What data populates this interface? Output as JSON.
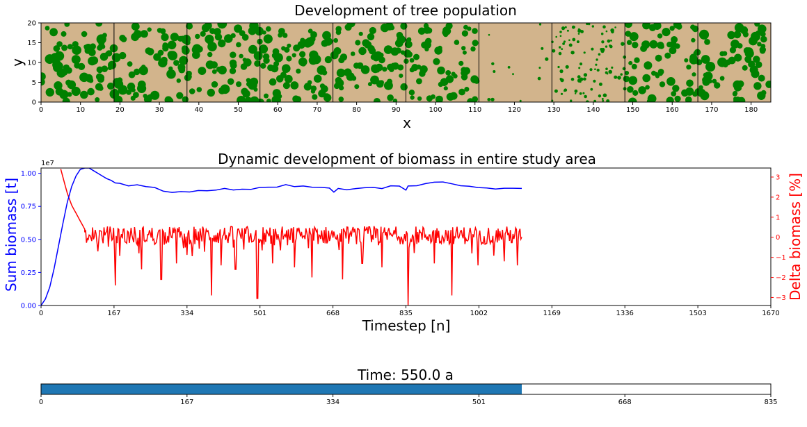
{
  "chart_data": [
    {
      "id": "tree_map",
      "type": "scatter",
      "title": "Development of tree population",
      "xlabel": "x",
      "ylabel": "y",
      "xlim": [
        0,
        185
      ],
      "ylim": [
        0,
        20
      ],
      "xticks": [
        0,
        10,
        20,
        30,
        40,
        50,
        60,
        70,
        80,
        90,
        100,
        110,
        120,
        130,
        140,
        150,
        160,
        170,
        180
      ],
      "yticks": [
        0,
        5,
        10,
        15,
        20
      ],
      "background_color": "#d2b48c",
      "tree_color": "#008000",
      "panel_boundaries_x": [
        18.5,
        37,
        55.5,
        74,
        92.5,
        111,
        129.5,
        148,
        166.5
      ],
      "panels": [
        {
          "x_range": [
            0,
            18.5
          ],
          "tree_cover": 0.82
        },
        {
          "x_range": [
            18.5,
            37
          ],
          "tree_cover": 0.8
        },
        {
          "x_range": [
            37,
            55.5
          ],
          "tree_cover": 0.8
        },
        {
          "x_range": [
            55.5,
            74
          ],
          "tree_cover": 0.78
        },
        {
          "x_range": [
            74,
            92.5
          ],
          "tree_cover": 0.72
        },
        {
          "x_range": [
            92.5,
            111
          ],
          "tree_cover": 0.58
        },
        {
          "x_range": [
            111,
            129.5
          ],
          "tree_cover": 0.02
        },
        {
          "x_range": [
            129.5,
            148
          ],
          "tree_cover": 0.35
        },
        {
          "x_range": [
            148,
            166.5
          ],
          "tree_cover": 0.72
        },
        {
          "x_range": [
            166.5,
            185
          ],
          "tree_cover": 0.82
        }
      ]
    },
    {
      "id": "biomass",
      "type": "line",
      "title": "Dynamic development of biomass in entire study area",
      "xlabel": "Timestep [n]",
      "ylabel_left": "Sum biomass [t]",
      "ylabel_right": "Delta biomass [%]",
      "left_axis_offset": "1e7",
      "xlim": [
        0,
        1670
      ],
      "xticks": [
        "0",
        "167",
        "334",
        "501",
        "668",
        "835",
        "1002",
        "1169",
        "1336",
        "1503",
        "1670"
      ],
      "ylim_left": [
        0,
        1.04
      ],
      "yticks_left": [
        "0.00",
        "0.25",
        "0.50",
        "0.75",
        "1.00"
      ],
      "ylim_right": [
        -3.4,
        3.45
      ],
      "yticks_right": [
        "−3",
        "−2",
        "−1",
        "0",
        "1",
        "2",
        "3"
      ],
      "series": [
        {
          "axis": "left",
          "color": "#0000ff",
          "x": [
            0,
            10,
            20,
            30,
            40,
            50,
            60,
            70,
            80,
            90,
            100,
            110,
            120,
            130,
            140,
            150,
            160,
            170,
            180,
            200,
            220,
            240,
            260,
            280,
            300,
            320,
            340,
            360,
            380,
            400,
            420,
            440,
            460,
            480,
            500,
            520,
            540,
            560,
            580,
            600,
            620,
            640,
            660,
            670,
            680,
            700,
            720,
            740,
            760,
            780,
            800,
            820,
            835,
            840,
            860,
            880,
            900,
            920,
            940,
            960,
            980,
            1000,
            1020,
            1040,
            1060,
            1080,
            1100
          ],
          "values": [
            0.0,
            0.05,
            0.14,
            0.28,
            0.45,
            0.62,
            0.78,
            0.9,
            0.98,
            1.03,
            1.04,
            1.04,
            1.02,
            1.0,
            0.98,
            0.96,
            0.95,
            0.93,
            0.92,
            0.91,
            0.91,
            0.9,
            0.89,
            0.87,
            0.86,
            0.86,
            0.86,
            0.87,
            0.87,
            0.87,
            0.88,
            0.87,
            0.88,
            0.88,
            0.89,
            0.9,
            0.9,
            0.91,
            0.9,
            0.9,
            0.9,
            0.89,
            0.89,
            0.86,
            0.88,
            0.88,
            0.88,
            0.89,
            0.89,
            0.89,
            0.9,
            0.9,
            0.87,
            0.9,
            0.91,
            0.92,
            0.93,
            0.93,
            0.92,
            0.9,
            0.9,
            0.89,
            0.89,
            0.88,
            0.89,
            0.89,
            0.89
          ]
        },
        {
          "axis": "right",
          "color": "#ff0000",
          "x": [
            45,
            50,
            55,
            60,
            65,
            70,
            75,
            80,
            85,
            90,
            95,
            100
          ],
          "values": [
            3.4,
            3.0,
            2.6,
            2.2,
            1.9,
            1.6,
            1.4,
            1.2,
            1.0,
            0.8,
            0.6,
            0.4
          ],
          "noise_from_x": 100,
          "noise_to_x": 1100,
          "noise_baseline": 0.1,
          "noise_amplitude": 0.45,
          "dips": [
            {
              "x": 130,
              "value": -0.7
            },
            {
              "x": 170,
              "value": -2.4
            },
            {
              "x": 230,
              "value": -1.6
            },
            {
              "x": 275,
              "value": -2.1
            },
            {
              "x": 310,
              "value": -1.3
            },
            {
              "x": 390,
              "value": -2.9
            },
            {
              "x": 412,
              "value": -1.4
            },
            {
              "x": 445,
              "value": -1.6
            },
            {
              "x": 445,
              "value": -1.6
            },
            {
              "x": 495,
              "value": -3.05
            },
            {
              "x": 530,
              "value": -1.3
            },
            {
              "x": 580,
              "value": -1.5
            },
            {
              "x": 620,
              "value": -2.0
            },
            {
              "x": 690,
              "value": -2.1
            },
            {
              "x": 735,
              "value": -1.3
            },
            {
              "x": 780,
              "value": -1.5
            },
            {
              "x": 840,
              "value": -3.4
            },
            {
              "x": 900,
              "value": -1.3
            },
            {
              "x": 940,
              "value": -2.9
            },
            {
              "x": 1000,
              "value": -1.4
            },
            {
              "x": 1060,
              "value": -1.2
            },
            {
              "x": 1090,
              "value": -1.4
            }
          ]
        }
      ]
    },
    {
      "id": "time_bar",
      "type": "bar",
      "title": "Time: 550.0 a",
      "xlim": [
        0,
        835
      ],
      "xticks": [
        "0",
        "167",
        "334",
        "501",
        "668",
        "835"
      ],
      "value": 550,
      "color": "#1f77b4"
    }
  ]
}
